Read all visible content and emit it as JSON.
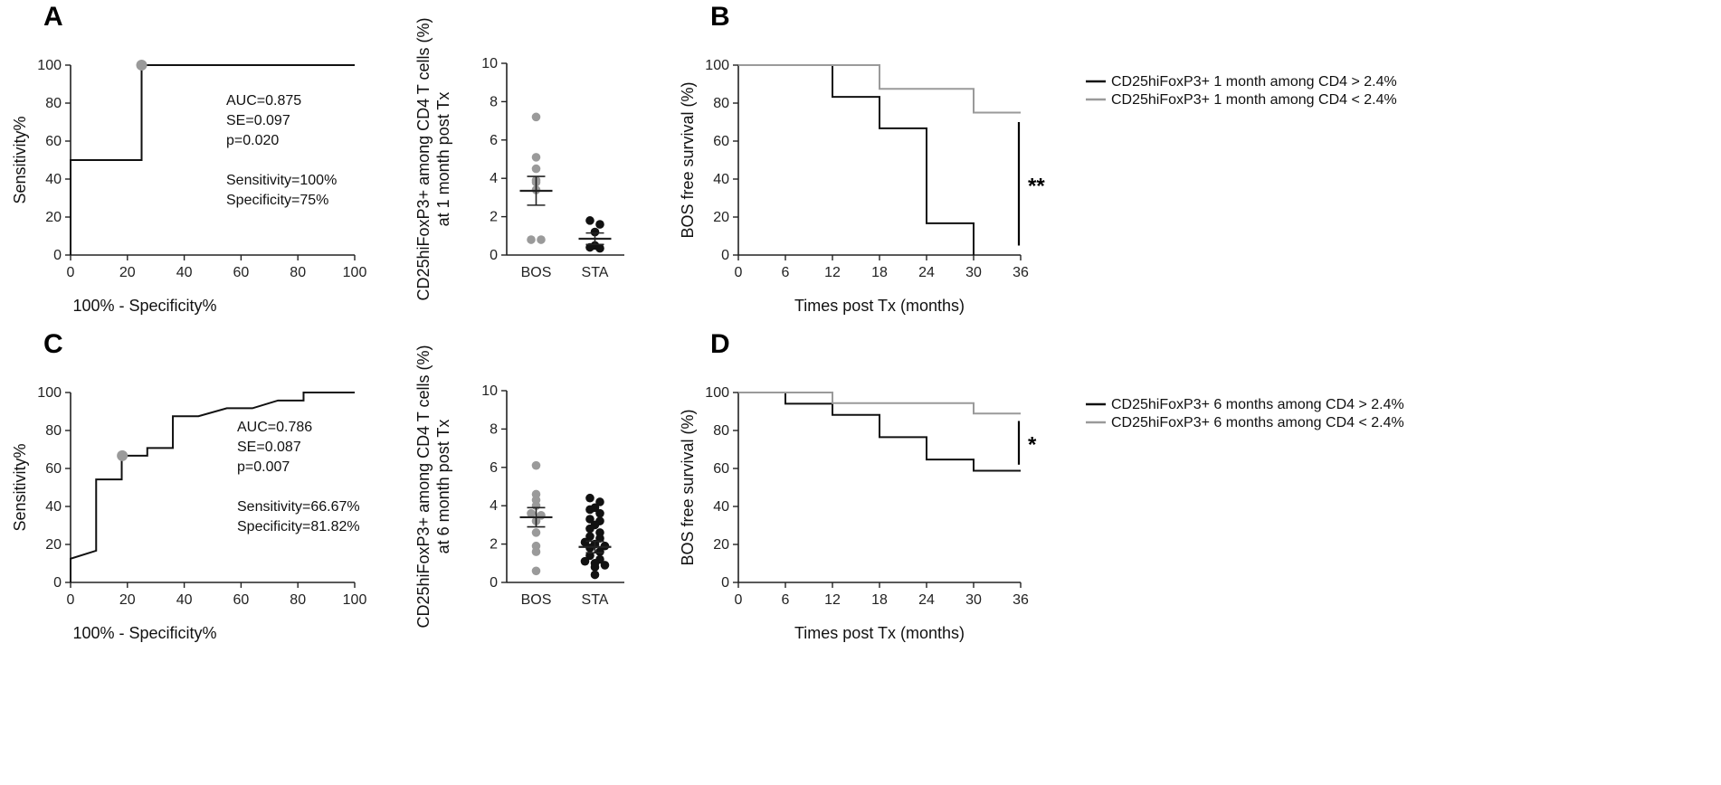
{
  "colors": {
    "black": "#111111",
    "gray": "#9a9a9a",
    "axis": "#222222"
  },
  "chart_data": [
    {
      "id": "rocA",
      "panel": "A",
      "type": "line",
      "title": "",
      "xlabel": "100% - Specificity%",
      "ylabel": "Sensitivity%",
      "xlim": [
        0,
        100
      ],
      "ylim": [
        0,
        100
      ],
      "xticks": [
        0,
        20,
        40,
        60,
        80,
        100
      ],
      "yticks": [
        0,
        20,
        40,
        60,
        80,
        100
      ],
      "series": [
        {
          "name": "ROC",
          "color": "#111111",
          "x": [
            0,
            0,
            25,
            25,
            100
          ],
          "y": [
            0,
            50,
            50,
            100,
            100
          ]
        }
      ],
      "highlight_point": {
        "x": 25,
        "y": 100,
        "color": "#9a9a9a"
      },
      "annotations": [
        "AUC=0.875",
        "SE=0.097",
        "p=0.020",
        "",
        "Sensitivity=100%",
        "Specificity=75%"
      ]
    },
    {
      "id": "scatterA",
      "type": "scatter",
      "title": "",
      "xlabel": "",
      "ylabel": "CD25hiFoxP3+ among CD4 T cells (%)",
      "ylabel2": "at 1 month post Tx",
      "categories": [
        "BOS",
        "STA"
      ],
      "ylim": [
        0,
        10
      ],
      "yticks": [
        0,
        2,
        4,
        6,
        8,
        10
      ],
      "groups": [
        {
          "name": "BOS",
          "color": "#9a9a9a",
          "values": [
            7.2,
            5.1,
            4.5,
            3.9,
            3.8,
            3.4,
            0.8,
            0.8
          ],
          "mean": 3.35,
          "sem_low": 2.6,
          "sem_high": 4.1
        },
        {
          "name": "STA",
          "color": "#111111",
          "values": [
            1.8,
            1.6,
            1.2,
            0.5,
            0.4,
            0.35
          ],
          "mean": 0.85,
          "sem_low": 0.55,
          "sem_high": 1.15
        }
      ]
    },
    {
      "id": "kmB",
      "panel": "B",
      "type": "line",
      "title": "",
      "xlabel": "Times post Tx (months)",
      "ylabel": "BOS free survival (%)",
      "xlim": [
        0,
        36
      ],
      "ylim": [
        0,
        100
      ],
      "xticks": [
        0,
        6,
        12,
        18,
        24,
        30,
        36
      ],
      "yticks": [
        0,
        20,
        40,
        60,
        80,
        100
      ],
      "series": [
        {
          "name": "CD25hiFoxP3+ 1 month among CD4 > 2.4%",
          "color": "#111111",
          "x": [
            0,
            12,
            18,
            24,
            30
          ],
          "y": [
            100,
            83.3,
            66.7,
            16.7,
            0
          ]
        },
        {
          "name": "CD25hiFoxP3+ 1 month among CD4 < 2.4%",
          "color": "#9a9a9a",
          "x": [
            0,
            18,
            30,
            36
          ],
          "y": [
            100,
            87.5,
            75,
            75
          ]
        }
      ],
      "significance": {
        "label": "**",
        "x": 36,
        "y_range": [
          5,
          70
        ]
      }
    },
    {
      "id": "rocC",
      "panel": "C",
      "type": "line",
      "title": "",
      "xlabel": "100% - Specificity%",
      "ylabel": "Sensitivity%",
      "xlim": [
        0,
        100
      ],
      "ylim": [
        0,
        100
      ],
      "xticks": [
        0,
        20,
        40,
        60,
        80,
        100
      ],
      "yticks": [
        0,
        20,
        40,
        60,
        80,
        100
      ],
      "series": [
        {
          "name": "ROC",
          "color": "#111111",
          "x": [
            0,
            0,
            9,
            9,
            18,
            18,
            27,
            27,
            36,
            36,
            45,
            45,
            55,
            55,
            64,
            64,
            73,
            73,
            82,
            82,
            100
          ],
          "y": [
            0,
            12.5,
            16.7,
            54.2,
            54.2,
            66.7,
            66.7,
            70.8,
            70.8,
            87.5,
            87.5,
            87.5,
            91.7,
            91.7,
            91.7,
            91.7,
            95.8,
            95.8,
            95.8,
            100,
            100
          ]
        }
      ],
      "highlight_point": {
        "x": 18.2,
        "y": 66.7,
        "color": "#9a9a9a"
      },
      "annotations": [
        "AUC=0.786",
        "SE=0.087",
        "p=0.007",
        "",
        "Sensitivity=66.67%",
        "Specificity=81.82%"
      ]
    },
    {
      "id": "scatterC",
      "type": "scatter",
      "title": "",
      "xlabel": "",
      "ylabel": "CD25hiFoxP3+  among CD4 T cells (%)",
      "ylabel2": "at 6 month post Tx",
      "categories": [
        "BOS",
        "STA"
      ],
      "ylim": [
        0,
        10
      ],
      "yticks": [
        0,
        2,
        4,
        6,
        8,
        10
      ],
      "groups": [
        {
          "name": "BOS",
          "color": "#9a9a9a",
          "values": [
            6.1,
            4.6,
            4.3,
            4.0,
            3.6,
            3.5,
            3.2,
            2.6,
            1.9,
            1.6,
            0.6
          ],
          "mean": 3.4,
          "sem_low": 2.9,
          "sem_high": 3.9
        },
        {
          "name": "STA",
          "color": "#111111",
          "values": [
            4.4,
            4.2,
            3.9,
            3.8,
            3.6,
            3.3,
            3.2,
            3.0,
            2.8,
            2.6,
            2.4,
            2.3,
            2.1,
            2.0,
            1.9,
            1.8,
            1.6,
            1.4,
            1.2,
            1.1,
            1.0,
            0.9,
            0.8,
            0.4
          ],
          "mean": 1.85,
          "sem_low": 1.55,
          "sem_high": 2.15
        }
      ]
    },
    {
      "id": "kmD",
      "panel": "D",
      "type": "line",
      "title": "",
      "xlabel": "Times post Tx (months)",
      "ylabel": "BOS free survival (%)",
      "xlim": [
        0,
        36
      ],
      "ylim": [
        0,
        100
      ],
      "xticks": [
        0,
        6,
        12,
        18,
        24,
        30,
        36
      ],
      "yticks": [
        0,
        20,
        40,
        60,
        80,
        100
      ],
      "series": [
        {
          "name": "CD25hiFoxP3+ 6 months among CD4 > 2.4%",
          "color": "#111111",
          "x": [
            0,
            6,
            12,
            18,
            24,
            30,
            36
          ],
          "y": [
            100,
            94.1,
            88.2,
            76.5,
            64.7,
            58.8,
            58.8
          ]
        },
        {
          "name": "CD25hiFoxP3+ 6 months among CD4 < 2.4%",
          "color": "#9a9a9a",
          "x": [
            0,
            12,
            30,
            36
          ],
          "y": [
            100,
            94.4,
            88.9,
            88.9
          ]
        }
      ],
      "significance": {
        "label": "*",
        "x": 36,
        "y_range": [
          62,
          85
        ]
      }
    }
  ]
}
